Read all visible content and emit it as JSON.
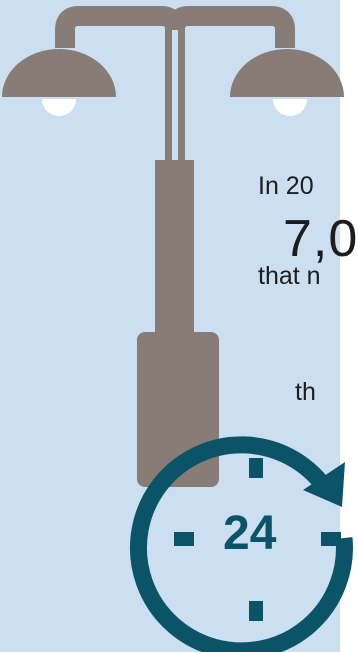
{
  "colors": {
    "background": "#ccdff1",
    "lamp": "#877c76",
    "bulb": "#ffffff",
    "clock": "#0b5467",
    "text": "#1d1d1d"
  },
  "text": {
    "line_1": "In 20",
    "line_2": "7,0",
    "line_3": "that n",
    "line_4": "th"
  },
  "clock": {
    "hours": "24"
  },
  "icons": [
    "street-lamp-icon",
    "clock-24-icon"
  ]
}
